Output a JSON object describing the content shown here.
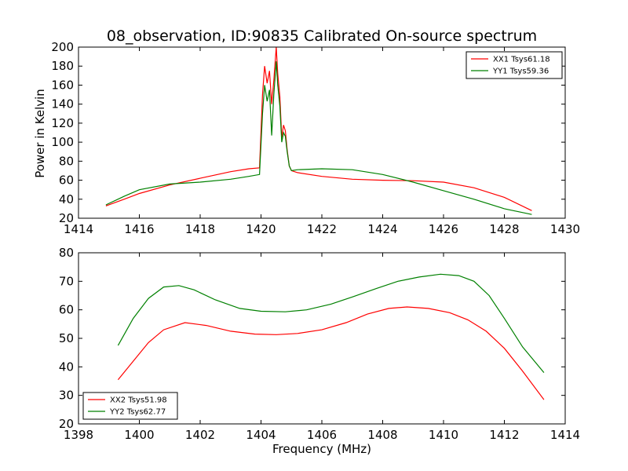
{
  "chart_data": [
    {
      "type": "line",
      "title": "08_observation, ID:90835 Calibrated On-source spectrum",
      "xlabel": "",
      "ylabel": "Power in Kelvin",
      "xlim": [
        1414,
        1430
      ],
      "ylim": [
        20,
        200
      ],
      "xticks": [
        1414,
        1416,
        1418,
        1420,
        1422,
        1424,
        1426,
        1428,
        1430
      ],
      "yticks": [
        20,
        40,
        60,
        80,
        100,
        120,
        140,
        160,
        180,
        200
      ],
      "grid": false,
      "legend_position": "top-right",
      "series": [
        {
          "name": "XX1 Tsys61.18",
          "color": "#ff0000",
          "x": [
            1414.9,
            1415.5,
            1416.0,
            1417.0,
            1418.0,
            1419.0,
            1419.6,
            1419.95,
            1420.05,
            1420.12,
            1420.2,
            1420.28,
            1420.35,
            1420.42,
            1420.5,
            1420.55,
            1420.62,
            1420.68,
            1420.74,
            1420.8,
            1420.86,
            1420.93,
            1421.0,
            1421.2,
            1422.0,
            1423.0,
            1424.0,
            1425.0,
            1426.0,
            1427.0,
            1428.0,
            1428.9
          ],
          "y": [
            33,
            40,
            46,
            55,
            62,
            69,
            72,
            73,
            150,
            180,
            162,
            175,
            140,
            165,
            200,
            172,
            148,
            105,
            118,
            112,
            92,
            75,
            70,
            68,
            64,
            61,
            60,
            59.5,
            58,
            52,
            42,
            28
          ]
        },
        {
          "name": "YY1 Tsys59.36",
          "color": "#008000",
          "x": [
            1414.9,
            1415.5,
            1416.0,
            1417.0,
            1418.0,
            1419.0,
            1419.6,
            1419.95,
            1420.05,
            1420.12,
            1420.2,
            1420.28,
            1420.35,
            1420.42,
            1420.5,
            1420.55,
            1420.62,
            1420.68,
            1420.74,
            1420.8,
            1420.86,
            1420.93,
            1421.0,
            1421.2,
            1422.0,
            1423.0,
            1424.0,
            1425.0,
            1426.0,
            1427.0,
            1428.0,
            1428.9
          ],
          "y": [
            34,
            43,
            50,
            56,
            58,
            61,
            64,
            66,
            130,
            160,
            143,
            155,
            107,
            150,
            185,
            160,
            138,
            100,
            110,
            106,
            90,
            75,
            70,
            71,
            72,
            71,
            66,
            58,
            49,
            40,
            30,
            24
          ]
        }
      ]
    },
    {
      "type": "line",
      "title": "",
      "xlabel": "Frequency (MHz)",
      "ylabel": "",
      "xlim": [
        1398,
        1414
      ],
      "ylim": [
        20,
        80
      ],
      "xticks": [
        1398,
        1400,
        1402,
        1404,
        1406,
        1408,
        1410,
        1412,
        1414
      ],
      "yticks": [
        20,
        30,
        40,
        50,
        60,
        70,
        80
      ],
      "grid": false,
      "legend_position": "bottom-left",
      "series": [
        {
          "name": "XX2 Tsys51.98",
          "color": "#ff0000",
          "x": [
            1399.3,
            1399.8,
            1400.3,
            1400.8,
            1401.5,
            1402.2,
            1403.0,
            1403.8,
            1404.5,
            1405.2,
            1406.0,
            1406.8,
            1407.5,
            1408.2,
            1408.8,
            1409.5,
            1410.2,
            1410.8,
            1411.4,
            1412.0,
            1412.6,
            1413.3
          ],
          "y": [
            35.5,
            42,
            48.5,
            53,
            55.5,
            54.5,
            52.5,
            51.5,
            51.3,
            51.7,
            53,
            55.5,
            58.5,
            60.5,
            61,
            60.5,
            59,
            56.5,
            52.5,
            46.5,
            38.5,
            28.5
          ]
        },
        {
          "name": "YY2 Tsys62.77",
          "color": "#008000",
          "x": [
            1399.3,
            1399.8,
            1400.3,
            1400.8,
            1401.3,
            1401.8,
            1402.5,
            1403.3,
            1404.0,
            1404.8,
            1405.5,
            1406.3,
            1407.0,
            1407.8,
            1408.5,
            1409.2,
            1409.9,
            1410.5,
            1411.0,
            1411.5,
            1412.0,
            1412.6,
            1413.3
          ],
          "y": [
            47.5,
            57,
            64,
            68,
            68.5,
            67,
            63.5,
            60.5,
            59.5,
            59.3,
            60,
            62,
            64.5,
            67.5,
            70,
            71.5,
            72.5,
            72,
            70,
            65,
            57,
            47,
            38
          ]
        }
      ]
    }
  ]
}
